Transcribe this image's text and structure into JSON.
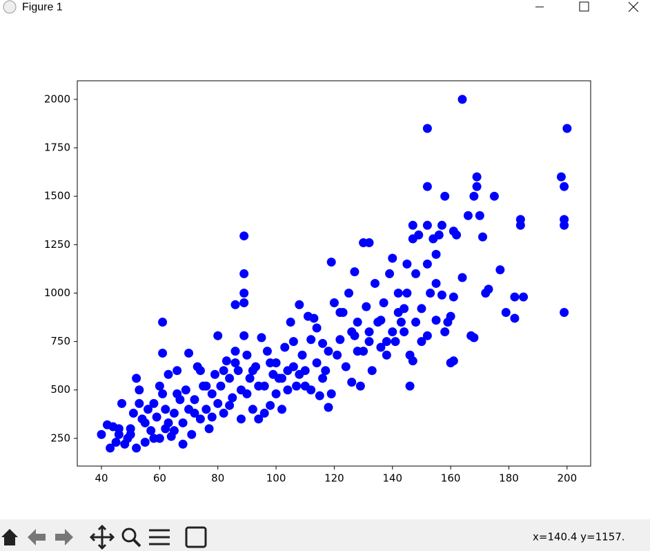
{
  "window_title": "Figure 1",
  "status": "x=140.4  y=1157.",
  "chart_data": {
    "type": "scatter",
    "color": "#0000ff",
    "xlim": [
      31.7,
      208.1
    ],
    "xticks": [
      40,
      60,
      80,
      100,
      120,
      140,
      160,
      180,
      200
    ],
    "ylim": [
      107,
      2096
    ],
    "yticks": [
      250,
      500,
      750,
      1000,
      1250,
      1500,
      1750,
      2000
    ],
    "x": [
      164,
      152,
      200,
      169,
      198,
      152,
      169,
      199,
      158,
      168,
      175,
      166,
      170,
      184,
      199,
      184,
      199,
      147,
      152,
      157,
      161,
      162,
      171,
      89,
      89,
      89,
      89,
      86,
      61,
      61,
      130,
      132,
      127,
      119,
      140,
      145,
      177,
      173,
      172,
      182,
      185,
      179,
      182,
      199,
      164,
      161,
      146,
      160,
      161,
      167,
      168,
      157,
      155,
      153,
      150,
      155,
      159,
      148,
      152,
      146,
      147,
      40,
      42,
      43,
      44,
      45,
      46,
      47,
      48,
      49,
      50,
      51,
      52,
      52,
      53,
      53,
      54,
      55,
      56,
      57,
      58,
      59,
      60,
      60,
      61,
      62,
      63,
      63,
      64,
      65,
      66,
      67,
      68,
      68,
      69,
      70,
      70,
      71,
      72,
      73,
      74,
      75,
      76,
      77,
      78,
      79,
      80,
      80,
      81,
      82,
      83,
      84,
      85,
      86,
      87,
      88,
      89,
      90,
      91,
      92,
      93,
      94,
      95,
      96,
      97,
      98,
      99,
      100,
      101,
      102,
      103,
      104,
      105,
      106,
      107,
      108,
      109,
      110,
      111,
      112,
      113,
      114,
      115,
      116,
      117,
      118,
      119,
      120,
      121,
      122,
      123,
      124,
      125,
      126,
      127,
      128,
      129,
      130,
      131,
      132,
      133,
      134,
      135,
      136,
      137,
      138,
      139,
      140,
      141,
      142,
      143,
      144,
      145,
      147,
      148,
      149,
      150,
      152,
      154,
      155,
      156,
      158,
      160,
      46,
      50,
      55,
      58,
      62,
      65,
      66,
      72,
      74,
      76,
      78,
      82,
      84,
      86,
      88,
      90,
      92,
      94,
      96,
      98,
      100,
      102,
      104,
      106,
      108,
      110,
      112,
      114,
      116,
      118,
      122,
      126,
      128,
      132,
      136,
      138,
      142,
      144
    ],
    "values": [
      2000,
      1850,
      1850,
      1600,
      1600,
      1550,
      1550,
      1550,
      1500,
      1500,
      1500,
      1400,
      1400,
      1380,
      1380,
      1350,
      1350,
      1350,
      1350,
      1350,
      1320,
      1300,
      1290,
      1295,
      1100,
      1000,
      950,
      940,
      850,
      690,
      1260,
      1260,
      1110,
      1160,
      1180,
      1150,
      1120,
      1020,
      1000,
      980,
      980,
      900,
      870,
      900,
      1080,
      980,
      520,
      640,
      650,
      780,
      770,
      990,
      1050,
      1000,
      920,
      860,
      850,
      850,
      780,
      680,
      650,
      270,
      320,
      200,
      310,
      230,
      300,
      430,
      220,
      250,
      270,
      380,
      200,
      560,
      500,
      430,
      350,
      230,
      400,
      290,
      430,
      360,
      250,
      520,
      480,
      400,
      330,
      580,
      260,
      380,
      600,
      450,
      220,
      330,
      500,
      400,
      690,
      270,
      450,
      620,
      350,
      520,
      400,
      300,
      480,
      580,
      430,
      780,
      520,
      380,
      650,
      560,
      460,
      700,
      600,
      500,
      780,
      680,
      560,
      400,
      620,
      350,
      770,
      520,
      700,
      420,
      580,
      640,
      560,
      400,
      720,
      600,
      850,
      750,
      520,
      940,
      680,
      600,
      880,
      500,
      870,
      640,
      470,
      740,
      600,
      410,
      480,
      950,
      680,
      760,
      900,
      620,
      1000,
      540,
      780,
      850,
      520,
      700,
      930,
      800,
      600,
      1050,
      850,
      720,
      950,
      680,
      1100,
      800,
      750,
      900,
      850,
      800,
      1000,
      1280,
      1100,
      1300,
      750,
      1150,
      1280,
      1200,
      1300,
      800,
      880,
      270,
      300,
      330,
      250,
      300,
      290,
      480,
      380,
      600,
      520,
      360,
      600,
      420,
      640,
      350,
      480,
      600,
      520,
      380,
      640,
      480,
      560,
      500,
      620,
      580,
      520,
      760,
      820,
      560,
      700,
      900,
      800,
      700,
      750,
      860,
      750,
      1000,
      920
    ]
  }
}
